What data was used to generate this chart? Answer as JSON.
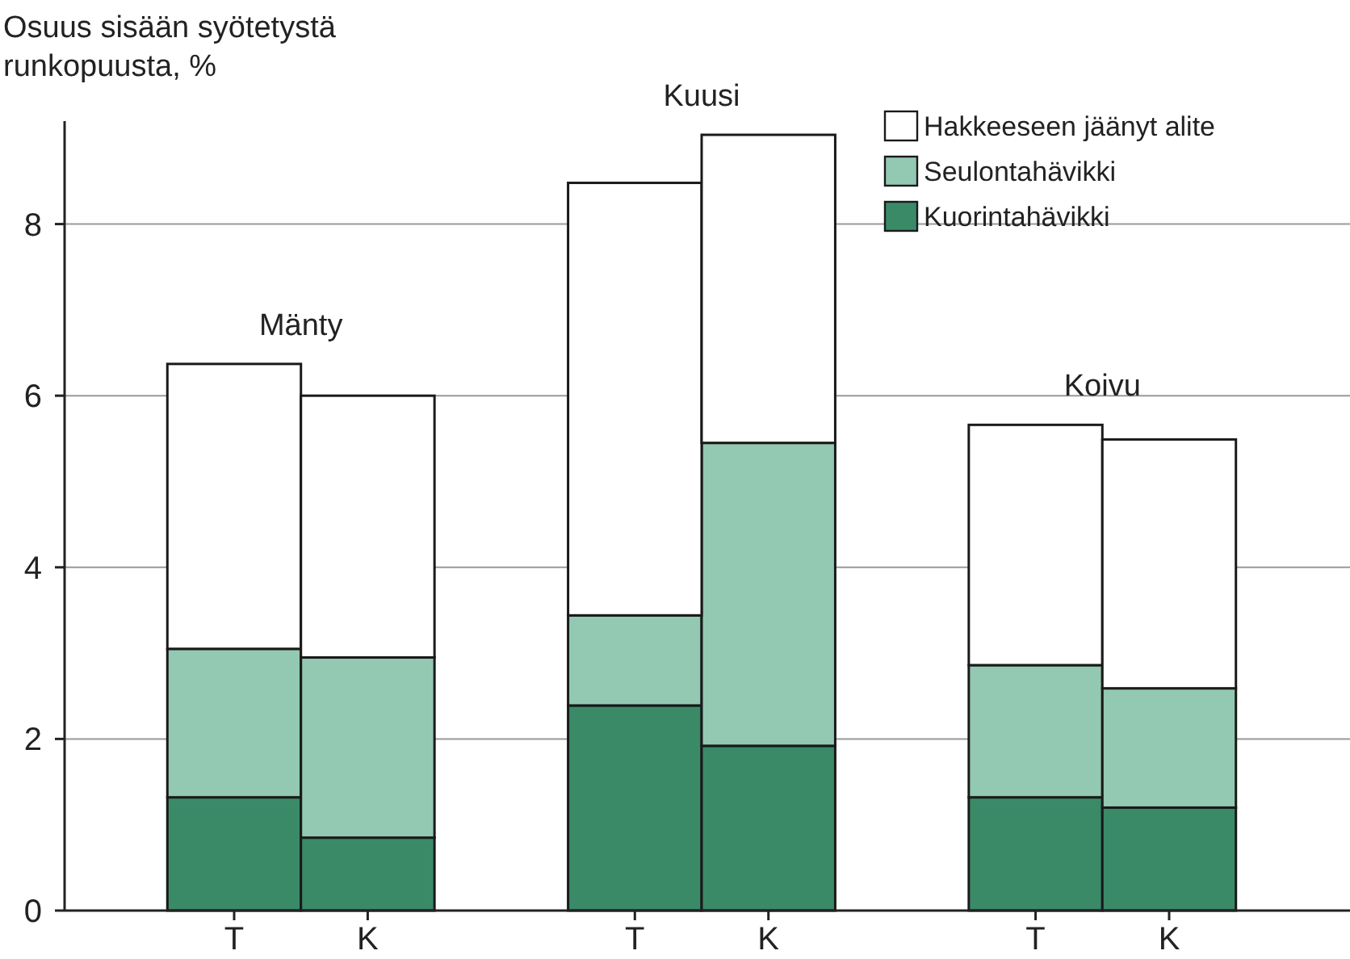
{
  "chart_data": {
    "type": "bar",
    "stacked": true,
    "ylabel": "Osuus sisään syötetystä runkopuusta, %",
    "categories": [
      "T",
      "K",
      null,
      "T",
      "K",
      null,
      "T",
      "K"
    ],
    "series": [
      {
        "name": "Kuorintahävikki",
        "color": "#3a8a68",
        "values": [
          1.32,
          0.85,
          null,
          2.39,
          1.92,
          null,
          1.32,
          1.2
        ]
      },
      {
        "name": "Seulontahävikki",
        "color": "#93c9b2",
        "values": [
          1.73,
          2.1,
          null,
          1.05,
          3.53,
          null,
          1.54,
          1.39
        ]
      },
      {
        "name": "Hakkeeseen jäänyt alite",
        "color": "#ffffff",
        "values": [
          3.32,
          3.05,
          null,
          5.04,
          3.59,
          null,
          2.8,
          2.9
        ]
      }
    ],
    "annotations": [
      "Mänty",
      "Kuusi",
      "Koivu"
    ],
    "ylim": [
      0,
      9.2
    ],
    "yticks": [
      0,
      2,
      4,
      6,
      8
    ],
    "grid": "y",
    "legend": "top right"
  }
}
